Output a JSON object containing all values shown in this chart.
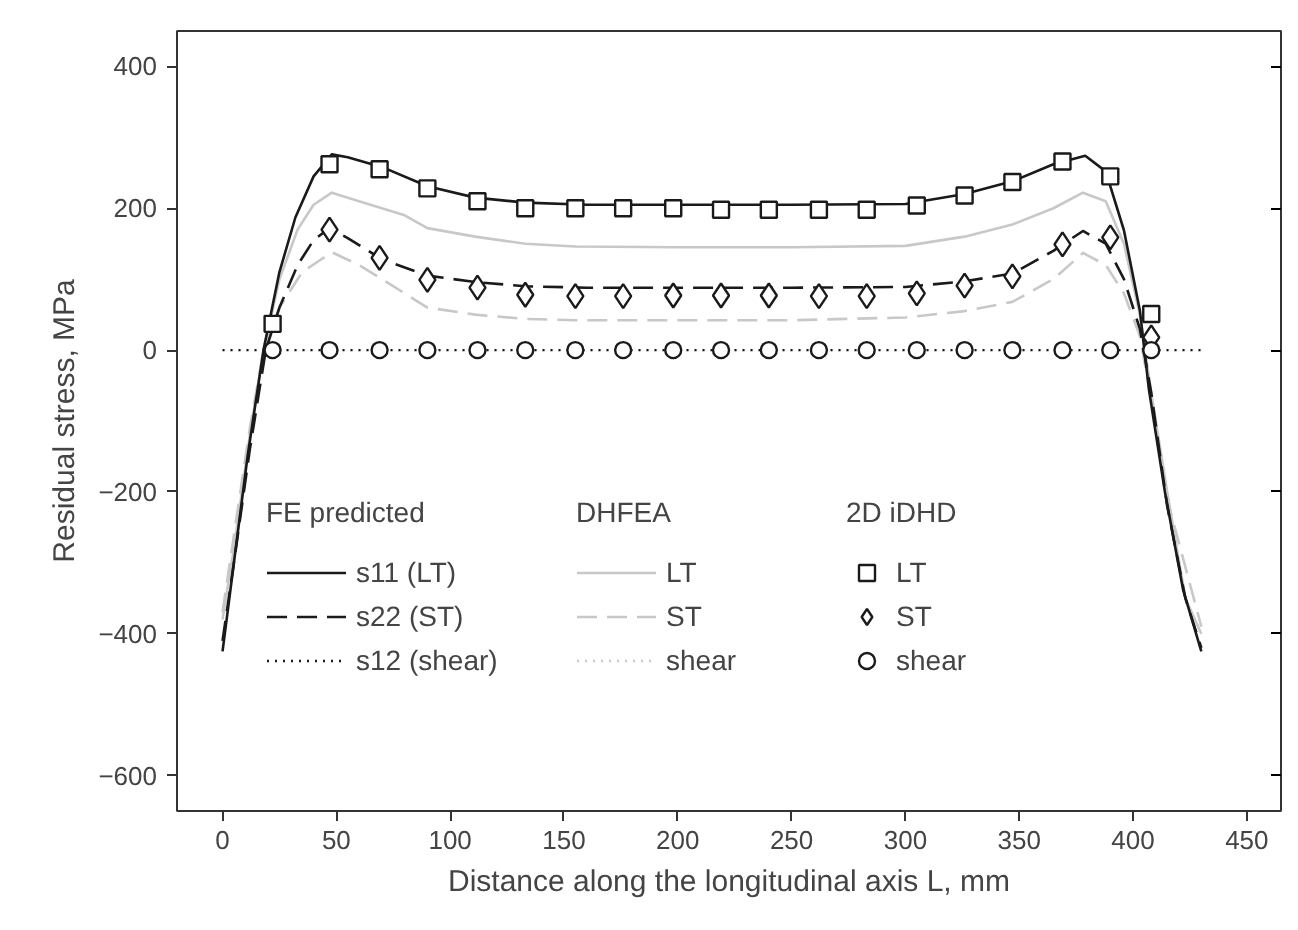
{
  "chart_data": {
    "type": "line",
    "xlabel": "Distance along the longitudinal axis L, mm",
    "ylabel": "Residual stress, MPa",
    "xlim": [
      -20,
      465
    ],
    "ylim": [
      -650,
      450
    ],
    "xticks": [
      0,
      50,
      100,
      150,
      200,
      250,
      300,
      350,
      400,
      450
    ],
    "yticks": [
      -600,
      -400,
      -200,
      0,
      200,
      400
    ],
    "grid": false,
    "legend": "bottom",
    "annotations": [
      "FE predicted",
      "DHFEA",
      "2D iDHD"
    ],
    "series": [
      {
        "name": "s11 (LT)",
        "type": "line",
        "color": "#1a1a1a",
        "line_style": "solid",
        "x": [
          0,
          3,
          11,
          18,
          25,
          32,
          40,
          48,
          55,
          71,
          90,
          111,
          133,
          160,
          200,
          250,
          300,
          326,
          347,
          365,
          379,
          388,
          396,
          403,
          407,
          414,
          422,
          430
        ],
        "values": [
          -425,
          -350,
          -150,
          0,
          110,
          187,
          245,
          276,
          272,
          257,
          231,
          215,
          208,
          205,
          205,
          205,
          206,
          220,
          238,
          262,
          274,
          252,
          169,
          56,
          -56,
          -200,
          -338,
          -425
        ]
      },
      {
        "name": "s22 (ST)",
        "type": "line",
        "color": "#1a1a1a",
        "line_style": "dashed",
        "x": [
          0,
          5,
          12,
          19,
          25,
          33,
          40,
          47,
          55,
          70,
          90,
          111,
          133,
          160,
          250,
          300,
          326,
          347,
          365,
          378,
          388,
          396,
          403,
          408,
          415,
          423,
          430
        ],
        "values": [
          -410,
          -300,
          -140,
          0,
          60,
          120,
          155,
          172,
          158,
          128,
          105,
          96,
          90,
          88,
          88,
          89,
          97,
          108,
          140,
          168,
          150,
          100,
          30,
          -60,
          -220,
          -350,
          -420
        ]
      },
      {
        "name": "s12 (shear)",
        "type": "line",
        "color": "#1a1a1a",
        "line_style": "dotted",
        "x": [
          0,
          430
        ],
        "values": [
          0,
          0
        ]
      },
      {
        "name": "LT",
        "type": "line",
        "color": "#c8c8c8",
        "line_style": "solid",
        "x": [
          0,
          5,
          12,
          18,
          25,
          33,
          40,
          48,
          60,
          80,
          90,
          111,
          133,
          155,
          200,
          250,
          300,
          326,
          347,
          365,
          378,
          388,
          396,
          403,
          408,
          415,
          423,
          430
        ],
        "values": [
          -380,
          -280,
          -120,
          0,
          100,
          170,
          205,
          222,
          210,
          190,
          172,
          160,
          150,
          146,
          145,
          145,
          147,
          160,
          177,
          200,
          222,
          210,
          150,
          50,
          -60,
          -200,
          -350,
          -400
        ]
      },
      {
        "name": "ST",
        "type": "line",
        "color": "#c8c8c8",
        "line_style": "dashed",
        "x": [
          0,
          12,
          18,
          25,
          35,
          48,
          60,
          80,
          90,
          111,
          133,
          155,
          250,
          300,
          326,
          347,
          365,
          378,
          388,
          396,
          403,
          408,
          415,
          430
        ],
        "values": [
          -370,
          -110,
          0,
          60,
          110,
          138,
          120,
          80,
          60,
          50,
          44,
          42,
          42,
          46,
          55,
          68,
          100,
          137,
          120,
          80,
          20,
          -70,
          -210,
          -390
        ]
      },
      {
        "name": "shear",
        "type": "line",
        "color": "#c8c8c8",
        "line_style": "dotted",
        "x": [
          0,
          430
        ],
        "values": [
          0,
          0
        ]
      },
      {
        "name": "LT",
        "type": "scatter",
        "marker": "square",
        "color": "#1a1a1a",
        "x": [
          22,
          47,
          69,
          90,
          112,
          133,
          155,
          176,
          198,
          219,
          240,
          262,
          283,
          305,
          326,
          347,
          369,
          390,
          408
        ],
        "values": [
          37,
          262,
          255,
          228,
          210,
          200,
          200,
          200,
          200,
          198,
          198,
          198,
          198,
          204,
          218,
          237,
          266,
          245,
          51
        ]
      },
      {
        "name": "ST",
        "type": "scatter",
        "marker": "diamond",
        "color": "#1a1a1a",
        "x": [
          47,
          69,
          90,
          112,
          133,
          155,
          176,
          198,
          219,
          240,
          262,
          283,
          305,
          326,
          347,
          369,
          390,
          408
        ],
        "values": [
          170,
          130,
          99,
          88,
          78,
          76,
          76,
          77,
          77,
          77,
          76,
          76,
          80,
          91,
          104,
          149,
          159,
          18
        ]
      },
      {
        "name": "shear",
        "type": "scatter",
        "marker": "circle",
        "color": "#1a1a1a",
        "x": [
          22,
          47,
          69,
          90,
          112,
          133,
          155,
          176,
          198,
          219,
          240,
          262,
          283,
          305,
          326,
          347,
          369,
          390,
          408
        ],
        "values": [
          0,
          0,
          0,
          0,
          0,
          0,
          0,
          0,
          0,
          0,
          0,
          0,
          0,
          0,
          0,
          0,
          0,
          0,
          0
        ]
      }
    ]
  }
}
